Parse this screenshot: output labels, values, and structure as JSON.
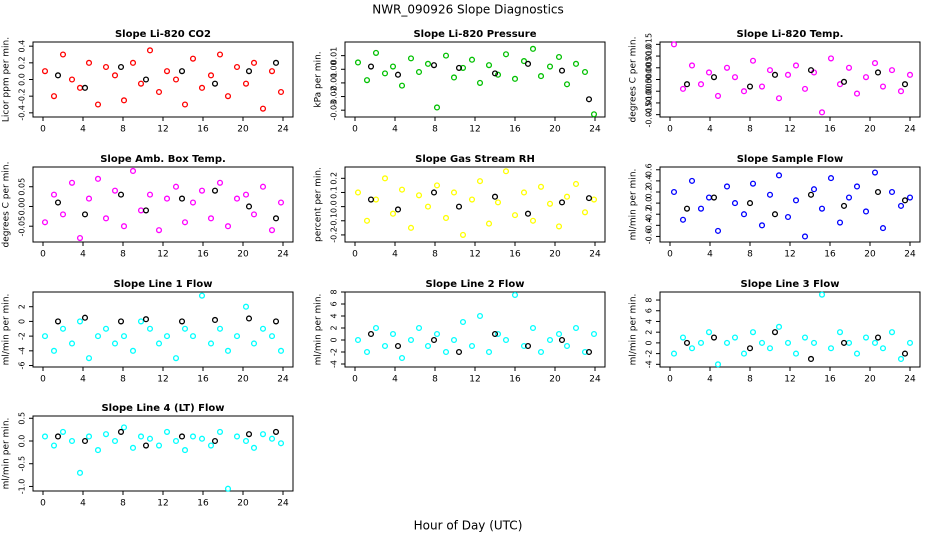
{
  "title": "NWR_090926  Slope Diagnostics",
  "x_label": "Hour of Day (UTC)",
  "chart_data": [
    {
      "type": "scatter",
      "title": "Slope Li-820 CO2",
      "y_label": "Licor ppm per min.",
      "xlim": [
        -1,
        25
      ],
      "xticks": [
        0,
        4,
        8,
        12,
        16,
        20,
        24
      ],
      "ylim": [
        -0.45,
        0.45
      ],
      "yticks": [
        -0.4,
        -0.2,
        {
          "value": 0,
          "label": "0.0"
        },
        0.2,
        0.4
      ],
      "series": [
        {
          "color": "#ff0000",
          "x": [
            0.2,
            1.1,
            2.0,
            2.9,
            3.7,
            4.6,
            5.5,
            6.3,
            7.2,
            8.1,
            9.0,
            9.8,
            10.7,
            11.6,
            12.4,
            13.3,
            14.2,
            15.0,
            15.9,
            16.8,
            17.7,
            18.5,
            19.4,
            20.3,
            21.1,
            22.0,
            22.9,
            23.8
          ],
          "values": [
            0.1,
            -0.2,
            0.3,
            0.0,
            -0.1,
            0.2,
            -0.3,
            0.15,
            0.05,
            -0.25,
            0.2,
            -0.05,
            0.35,
            -0.15,
            0.1,
            0.0,
            -0.3,
            0.25,
            -0.1,
            0.05,
            0.3,
            -0.2,
            0.15,
            -0.05,
            0.2,
            -0.35,
            0.1,
            -0.15
          ]
        },
        {
          "color": "#000000",
          "x": [
            1.5,
            4.2,
            7.8,
            10.3,
            13.9,
            17.2,
            20.6,
            23.3
          ],
          "values": [
            0.05,
            -0.1,
            0.15,
            0.0,
            0.1,
            -0.05,
            0.1,
            0.2
          ]
        }
      ]
    },
    {
      "type": "scatter",
      "title": "Slope Li-820 Pressure",
      "y_label": "kPa per min.",
      "xlim": [
        -1,
        25
      ],
      "xticks": [
        0,
        4,
        8,
        12,
        16,
        20,
        24
      ],
      "ylim": [
        -0.035,
        0.02
      ],
      "yticks": [
        -0.03,
        -0.02,
        -0.01,
        {
          "value": 0,
          "label": "0.00"
        },
        0.01
      ],
      "series": [
        {
          "color": "#00c000",
          "x": [
            0.3,
            1.2,
            2.1,
            3.0,
            3.8,
            4.7,
            5.6,
            6.4,
            7.3,
            8.2,
            9.1,
            9.9,
            10.8,
            11.7,
            12.5,
            13.4,
            14.3,
            15.1,
            16.0,
            16.9,
            17.8,
            18.6,
            19.5,
            20.4,
            21.2,
            22.1,
            23.0,
            23.9
          ],
          "values": [
            0.005,
            -0.008,
            0.012,
            -0.003,
            0.002,
            -0.012,
            0.008,
            -0.002,
            0.004,
            -0.028,
            0.01,
            -0.006,
            0.001,
            0.007,
            -0.01,
            0.003,
            -0.004,
            0.011,
            -0.007,
            0.006,
            0.015,
            -0.005,
            0.002,
            0.009,
            -0.011,
            0.004,
            -0.002,
            -0.033
          ]
        },
        {
          "color": "#000000",
          "x": [
            1.6,
            4.3,
            7.9,
            10.4,
            14.0,
            17.3,
            20.7,
            23.4
          ],
          "values": [
            0.002,
            -0.004,
            0.003,
            0.001,
            -0.003,
            0.004,
            -0.001,
            -0.022
          ]
        }
      ]
    },
    {
      "type": "scatter",
      "title": "Slope Li-820 Temp.",
      "y_label": "degrees C per min.",
      "xlim": [
        -1,
        25
      ],
      "xticks": [
        0,
        4,
        8,
        12,
        16,
        20,
        24
      ],
      "ylim": [
        -0.016,
        0.016
      ],
      "yticks": [
        -0.015,
        {
          "value": -0.01,
          "label": "-0.010"
        },
        -0.005,
        {
          "value": 0,
          "label": "0.000"
        },
        0.005,
        {
          "value": 0.01,
          "label": "0.010"
        },
        0.015
      ],
      "series": [
        {
          "color": "#ff00ff",
          "x": [
            0.4,
            1.3,
            2.2,
            3.1,
            3.9,
            4.8,
            5.7,
            6.5,
            7.4,
            8.3,
            9.2,
            10.0,
            10.9,
            11.8,
            12.6,
            13.5,
            14.4,
            15.2,
            16.1,
            17.0,
            17.9,
            18.7,
            19.6,
            20.5,
            21.3,
            22.2,
            23.1,
            24.0
          ],
          "values": [
            0.015,
            -0.004,
            0.006,
            -0.002,
            0.003,
            -0.007,
            0.005,
            0.001,
            -0.005,
            0.008,
            -0.003,
            0.004,
            -0.008,
            0.002,
            0.006,
            -0.004,
            0.003,
            -0.014,
            0.009,
            -0.002,
            0.005,
            -0.006,
            0.001,
            0.007,
            -0.003,
            0.004,
            -0.005,
            0.002
          ]
        },
        {
          "color": "#000000",
          "x": [
            1.7,
            4.4,
            8.0,
            10.5,
            14.1,
            17.4,
            20.8,
            23.5
          ],
          "values": [
            -0.002,
            0.001,
            -0.003,
            0.002,
            0.004,
            -0.001,
            0.003,
            -0.002
          ]
        }
      ]
    },
    {
      "type": "scatter",
      "title": "Slope Amb. Box Temp.",
      "y_label": "degrees C per min.",
      "xlim": [
        -1,
        25
      ],
      "xticks": [
        0,
        4,
        8,
        12,
        16,
        20,
        24
      ],
      "ylim": [
        -0.09,
        0.1
      ],
      "yticks": [
        -0.05,
        {
          "value": 0,
          "label": "0.00"
        },
        0.05
      ],
      "series": [
        {
          "color": "#ff00ff",
          "x": [
            0.2,
            1.1,
            2.0,
            2.9,
            3.7,
            4.6,
            5.5,
            6.3,
            7.2,
            8.1,
            9.0,
            9.8,
            10.7,
            11.6,
            12.4,
            13.3,
            14.2,
            15.0,
            15.9,
            16.8,
            17.7,
            18.5,
            19.4,
            20.3,
            21.1,
            22.0,
            22.9,
            23.8
          ],
          "values": [
            -0.04,
            0.03,
            -0.02,
            0.06,
            -0.08,
            0.02,
            0.07,
            -0.03,
            0.04,
            -0.05,
            0.09,
            -0.01,
            0.03,
            -0.06,
            0.02,
            0.05,
            -0.04,
            0.01,
            0.04,
            -0.03,
            0.06,
            -0.05,
            0.02,
            0.03,
            -0.02,
            0.05,
            -0.06,
            0.01
          ]
        },
        {
          "color": "#000000",
          "x": [
            1.5,
            4.2,
            7.8,
            10.3,
            13.9,
            17.2,
            20.6,
            23.3
          ],
          "values": [
            0.01,
            -0.02,
            0.03,
            -0.01,
            0.02,
            0.04,
            0.0,
            -0.03
          ]
        }
      ]
    },
    {
      "type": "scatter",
      "title": "Slope Gas Stream RH",
      "y_label": "percent per min.",
      "xlim": [
        -1,
        25
      ],
      "xticks": [
        0,
        4,
        8,
        12,
        16,
        20,
        24
      ],
      "ylim": [
        -0.25,
        0.28
      ],
      "yticks": [
        -0.2,
        -0.1,
        {
          "value": 0,
          "label": "0.0"
        },
        0.1,
        0.2
      ],
      "series": [
        {
          "color": "#ffff00",
          "x": [
            0.3,
            1.2,
            2.1,
            3.0,
            3.8,
            4.7,
            5.6,
            6.4,
            7.3,
            8.2,
            9.1,
            9.9,
            10.8,
            11.7,
            12.5,
            13.4,
            14.3,
            15.1,
            16.0,
            16.9,
            17.8,
            18.6,
            19.5,
            20.4,
            21.2,
            22.1,
            23.0,
            23.9
          ],
          "values": [
            0.1,
            -0.1,
            0.05,
            0.2,
            -0.05,
            0.12,
            -0.15,
            0.08,
            0.0,
            0.15,
            -0.08,
            0.1,
            -0.2,
            0.05,
            0.18,
            -0.12,
            0.03,
            0.25,
            -0.06,
            0.1,
            -0.1,
            0.14,
            0.02,
            -0.14,
            0.07,
            0.16,
            -0.04,
            0.05
          ]
        },
        {
          "color": "#000000",
          "x": [
            1.6,
            4.3,
            7.9,
            10.4,
            14.0,
            17.3,
            20.7,
            23.4
          ],
          "values": [
            0.05,
            -0.02,
            0.1,
            0.0,
            0.07,
            -0.05,
            0.03,
            0.06
          ]
        }
      ]
    },
    {
      "type": "scatter",
      "title": "Slope Sample Flow",
      "y_label": "ml/min per min.",
      "xlim": [
        -1,
        25
      ],
      "xticks": [
        0,
        4,
        8,
        12,
        16,
        20,
        24
      ],
      "ylim": [
        -0.7,
        0.65
      ],
      "yticks": [
        -0.6,
        -0.4,
        -0.2,
        {
          "value": 0,
          "label": "0.0"
        },
        0.2,
        0.4,
        0.6
      ],
      "series": [
        {
          "color": "#0000ff",
          "x": [
            0.4,
            1.3,
            2.2,
            3.1,
            3.9,
            4.8,
            5.7,
            6.5,
            7.4,
            8.3,
            9.2,
            10.0,
            10.9,
            11.8,
            12.6,
            13.5,
            14.4,
            15.2,
            16.1,
            17.0,
            17.9,
            18.7,
            19.6,
            20.5,
            21.3,
            22.2,
            23.1,
            24.0
          ],
          "values": [
            0.2,
            -0.3,
            0.4,
            -0.1,
            0.1,
            -0.5,
            0.3,
            0.0,
            -0.2,
            0.35,
            -0.4,
            0.15,
            0.5,
            -0.25,
            0.05,
            -0.6,
            0.25,
            -0.1,
            0.45,
            -0.35,
            0.1,
            0.3,
            -0.15,
            0.55,
            -0.45,
            0.2,
            -0.05,
            0.1
          ]
        },
        {
          "color": "#000000",
          "x": [
            1.7,
            4.4,
            8.0,
            10.5,
            14.1,
            17.4,
            20.8,
            23.5
          ],
          "values": [
            -0.1,
            0.1,
            0.0,
            -0.2,
            0.15,
            -0.05,
            0.2,
            0.05
          ]
        }
      ]
    },
    {
      "type": "scatter",
      "title": "Slope Line 1 Flow",
      "y_label": "ml/min per min.",
      "xlim": [
        -1,
        25
      ],
      "xticks": [
        0,
        4,
        8,
        12,
        16,
        20,
        24
      ],
      "ylim": [
        -6.2,
        4
      ],
      "yticks": [
        -6,
        -4,
        -2,
        0,
        2
      ],
      "series": [
        {
          "color": "#00ffff",
          "x": [
            0.2,
            1.1,
            2.0,
            2.9,
            3.7,
            4.6,
            5.5,
            6.3,
            7.2,
            8.1,
            9.0,
            9.8,
            10.7,
            11.6,
            12.4,
            13.3,
            14.2,
            15.0,
            15.9,
            16.8,
            17.7,
            18.5,
            19.4,
            20.3,
            21.1,
            22.0,
            22.9,
            23.8
          ],
          "values": [
            -2,
            -4,
            -1,
            -3,
            0,
            -5,
            -2,
            -1,
            -3,
            -2,
            -4,
            0,
            -1,
            -3,
            -2,
            -5,
            -1,
            -2,
            3.5,
            -3,
            -1,
            -4,
            -2,
            2,
            -3,
            -1,
            -2,
            -4
          ]
        },
        {
          "color": "#000000",
          "x": [
            1.5,
            4.2,
            7.8,
            10.3,
            13.9,
            17.2,
            20.6,
            23.3
          ],
          "values": [
            0,
            0.5,
            0,
            0.3,
            0,
            0.2,
            0.4,
            0
          ]
        }
      ]
    },
    {
      "type": "scatter",
      "title": "Slope Line 2 Flow",
      "y_label": "ml/min per min.",
      "xlim": [
        -1,
        25
      ],
      "xticks": [
        0,
        4,
        8,
        12,
        16,
        20,
        24
      ],
      "ylim": [
        -4.5,
        8
      ],
      "yticks": [
        -4,
        -2,
        0,
        2,
        4,
        6,
        8
      ],
      "series": [
        {
          "color": "#00ffff",
          "x": [
            0.3,
            1.2,
            2.1,
            3.0,
            3.8,
            4.7,
            5.6,
            6.4,
            7.3,
            8.2,
            9.1,
            9.9,
            10.8,
            11.7,
            12.5,
            13.4,
            14.3,
            15.1,
            16.0,
            16.9,
            17.8,
            18.6,
            19.5,
            20.4,
            21.2,
            22.1,
            23.0,
            23.9
          ],
          "values": [
            0,
            -2,
            2,
            -1,
            1,
            -3,
            0,
            2,
            -1,
            1,
            -2,
            0,
            3,
            -1,
            4,
            -2,
            1,
            0,
            7.5,
            -1,
            2,
            -2,
            0,
            1,
            -1,
            2,
            -2,
            1
          ]
        },
        {
          "color": "#000000",
          "x": [
            1.6,
            4.3,
            7.9,
            10.4,
            14.0,
            17.3,
            20.7,
            23.4
          ],
          "values": [
            1,
            -1,
            0,
            -2,
            1,
            -1,
            0,
            -2
          ]
        }
      ]
    },
    {
      "type": "scatter",
      "title": "Slope Line 3 Flow",
      "y_label": "ml/min per min.",
      "xlim": [
        -1,
        25
      ],
      "xticks": [
        0,
        4,
        8,
        12,
        16,
        20,
        24
      ],
      "ylim": [
        -4.5,
        9.5
      ],
      "yticks": [
        -4,
        -2,
        0,
        2,
        4,
        6,
        8
      ],
      "series": [
        {
          "color": "#00ffff",
          "x": [
            0.4,
            1.3,
            2.2,
            3.1,
            3.9,
            4.8,
            5.7,
            6.5,
            7.4,
            8.3,
            9.2,
            10.0,
            10.9,
            11.8,
            12.6,
            13.5,
            14.4,
            15.2,
            16.1,
            17.0,
            17.9,
            18.7,
            19.6,
            20.5,
            21.3,
            22.2,
            23.1,
            24.0
          ],
          "values": [
            -2,
            1,
            -1,
            0,
            2,
            -4,
            0,
            1,
            -2,
            2,
            0,
            -1,
            3,
            0,
            -2,
            1,
            0,
            9,
            -1,
            2,
            0,
            -2,
            1,
            0,
            -1,
            2,
            -3,
            0
          ]
        },
        {
          "color": "#000000",
          "x": [
            1.7,
            4.4,
            8.0,
            10.5,
            14.1,
            17.4,
            20.8,
            23.5
          ],
          "values": [
            0,
            1,
            -1,
            2,
            -3,
            0,
            1,
            -2
          ]
        }
      ]
    },
    {
      "type": "scatter",
      "title": "Slope Line 4 (LT) Flow",
      "y_label": "ml/min per min.",
      "xlim": [
        -1,
        25
      ],
      "xticks": [
        0,
        4,
        8,
        12,
        16,
        20,
        24
      ],
      "ylim": [
        -1.1,
        0.55
      ],
      "yticks": [
        {
          "value": -1,
          "label": "-1.0"
        },
        -0.5,
        {
          "value": 0,
          "label": "0.0"
        },
        0.5
      ],
      "series": [
        {
          "color": "#00ffff",
          "x": [
            0.2,
            1.1,
            2.0,
            2.9,
            3.7,
            4.6,
            5.5,
            6.3,
            7.2,
            8.1,
            9.0,
            9.8,
            10.7,
            11.6,
            12.4,
            13.3,
            14.2,
            15.0,
            15.9,
            16.8,
            17.7,
            18.5,
            19.4,
            20.3,
            21.1,
            22.0,
            22.9,
            23.8
          ],
          "values": [
            0.1,
            -0.1,
            0.2,
            0.0,
            -0.7,
            0.1,
            -0.2,
            0.15,
            0.0,
            0.3,
            -0.15,
            0.1,
            0.05,
            -0.1,
            0.2,
            0.0,
            -0.2,
            0.1,
            0.05,
            -0.1,
            0.2,
            -1.05,
            0.1,
            0.0,
            -0.15,
            0.15,
            0.05,
            -0.05
          ]
        },
        {
          "color": "#000000",
          "x": [
            1.5,
            4.2,
            7.8,
            10.3,
            13.9,
            17.2,
            20.6,
            23.3
          ],
          "values": [
            0.1,
            0.0,
            0.2,
            -0.1,
            0.1,
            0.0,
            0.15,
            0.2
          ]
        }
      ]
    }
  ]
}
